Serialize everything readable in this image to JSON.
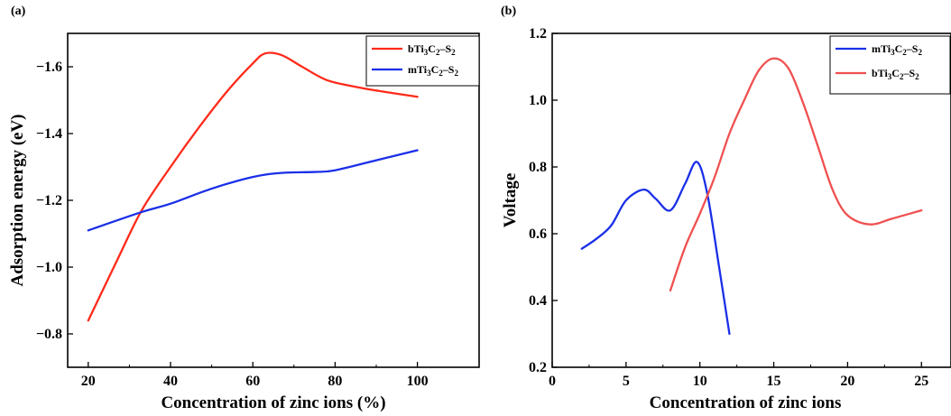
{
  "chart_data": [
    {
      "panel_label": "(a)",
      "type": "line",
      "xlabel": "Concentration of zinc ions (%)",
      "ylabel": "Adsorption energy (eV)",
      "xlim": [
        15,
        115
      ],
      "ylim": [
        -0.7,
        -1.7
      ],
      "y_inverted": true,
      "xticks": [
        20,
        40,
        60,
        80,
        100
      ],
      "yticks": [
        -0.8,
        -1.0,
        -1.2,
        -1.4,
        -1.6
      ],
      "ytick_labels": [
        "−0.8",
        "−1.0",
        "−1.2",
        "−1.4",
        "−1.6"
      ],
      "legend_position": "top-right",
      "series": [
        {
          "name": "bTi3C2–S2",
          "legend": {
            "a": "bTi",
            "s1": "3",
            "b": "C",
            "s2": "2",
            "c": "–S",
            "s3": "2"
          },
          "color": "#ff2a1a",
          "x": [
            20,
            27,
            33,
            40,
            47,
            54,
            60,
            63,
            67,
            72,
            78,
            85,
            92,
            100
          ],
          "y": [
            -0.84,
            -1.02,
            -1.17,
            -1.3,
            -1.42,
            -1.53,
            -1.61,
            -1.64,
            -1.635,
            -1.6,
            -1.56,
            -1.54,
            -1.525,
            -1.51
          ]
        },
        {
          "name": "mTi3C2–S2",
          "legend": {
            "a": "mTi",
            "s1": "3",
            "b": "C",
            "s2": "2",
            "c": "–S",
            "s3": "2"
          },
          "color": "#1a2fe8",
          "x": [
            20,
            33,
            40,
            50,
            60,
            67,
            75,
            80,
            90,
            100
          ],
          "y": [
            -1.11,
            -1.165,
            -1.19,
            -1.235,
            -1.27,
            -1.282,
            -1.285,
            -1.29,
            -1.32,
            -1.35
          ]
        }
      ]
    },
    {
      "panel_label": "(b)",
      "type": "line",
      "xlabel": "Concentration of zinc ions",
      "ylabel": "Voltage",
      "xlim": [
        0,
        27
      ],
      "ylim": [
        0.2,
        1.2
      ],
      "xticks": [
        0,
        5,
        10,
        15,
        20,
        25
      ],
      "yticks": [
        0.2,
        0.4,
        0.6,
        0.8,
        1.0,
        1.2
      ],
      "legend_position": "top-right",
      "series": [
        {
          "name": "mTi3C2–S2",
          "legend": {
            "a": "mTi",
            "s1": "3",
            "b": "C",
            "s2": "2",
            "c": "–S",
            "s3": "2"
          },
          "color": "#1a2fe8",
          "x": [
            2,
            3,
            4,
            5,
            6.2,
            7,
            8,
            9,
            9.8,
            10.5,
            11.3,
            12
          ],
          "y": [
            0.555,
            0.585,
            0.625,
            0.7,
            0.732,
            0.705,
            0.67,
            0.75,
            0.815,
            0.72,
            0.5,
            0.3
          ]
        },
        {
          "name": "bTi3C2–S2",
          "legend": {
            "a": "bTi",
            "s1": "3",
            "b": "C",
            "s2": "2",
            "c": "–S",
            "s3": "2"
          },
          "color": "#f05050",
          "x": [
            8,
            9,
            10,
            11,
            12,
            13,
            14,
            15,
            16,
            17,
            18,
            19,
            20,
            21.5,
            23,
            25
          ],
          "y": [
            0.43,
            0.56,
            0.66,
            0.77,
            0.9,
            1.0,
            1.09,
            1.125,
            1.095,
            0.99,
            0.86,
            0.73,
            0.655,
            0.628,
            0.645,
            0.67
          ]
        }
      ]
    }
  ]
}
